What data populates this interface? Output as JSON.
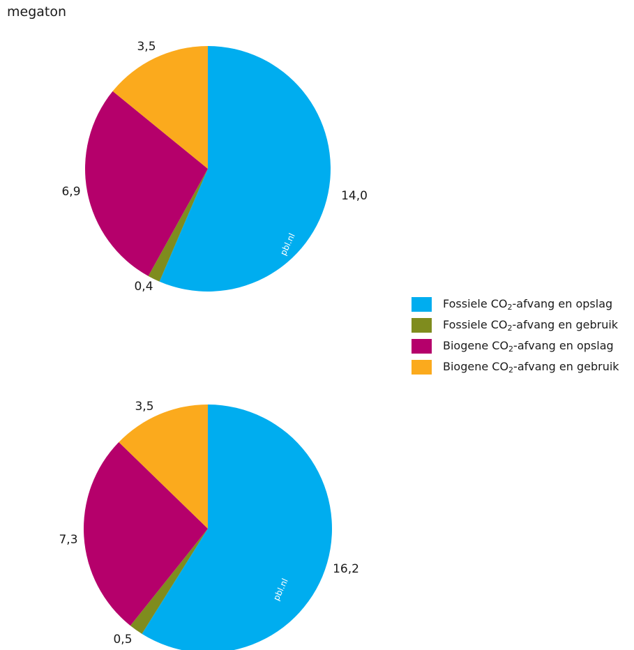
{
  "unit_label": "megaton",
  "watermark": "pbl.nl",
  "legend": [
    {
      "pre": "Fossiele CO",
      "sub": "2",
      "post": "-afvang en opslag",
      "color": "#00adef"
    },
    {
      "pre": "Fossiele CO",
      "sub": "2",
      "post": "-afvang en gebruik",
      "color": "#7f8c1e"
    },
    {
      "pre": "Biogene CO",
      "sub": "2",
      "post": "-afvang en opslag",
      "color": "#b5006b"
    },
    {
      "pre": "Biogene CO",
      "sub": "2",
      "post": "-afvang en gebruik",
      "color": "#fbaa1d"
    }
  ],
  "chart_data": [
    {
      "type": "pie",
      "title": "",
      "categories": [
        "Fossiele CO2-afvang en opslag",
        "Fossiele CO2-afvang en gebruik",
        "Biogene CO2-afvang en opslag",
        "Biogene CO2-afvang en gebruik"
      ],
      "values": [
        14.0,
        0.4,
        6.9,
        3.5
      ],
      "labels": [
        "14,0",
        "0,4",
        "6,9",
        "3,5"
      ],
      "colors": [
        "#00adef",
        "#7f8c1e",
        "#b5006b",
        "#fbaa1d"
      ],
      "start": "12 o'clock, clockwise"
    },
    {
      "type": "pie",
      "title": "",
      "categories": [
        "Fossiele CO2-afvang en opslag",
        "Fossiele CO2-afvang en gebruik",
        "Biogene CO2-afvang en opslag",
        "Biogene CO2-afvang en gebruik"
      ],
      "values": [
        16.2,
        0.5,
        7.3,
        3.5
      ],
      "labels": [
        "16,2",
        "0,5",
        "7,3",
        "3,5"
      ],
      "colors": [
        "#00adef",
        "#7f8c1e",
        "#b5006b",
        "#fbaa1d"
      ],
      "start": "12 o'clock, clockwise"
    }
  ]
}
